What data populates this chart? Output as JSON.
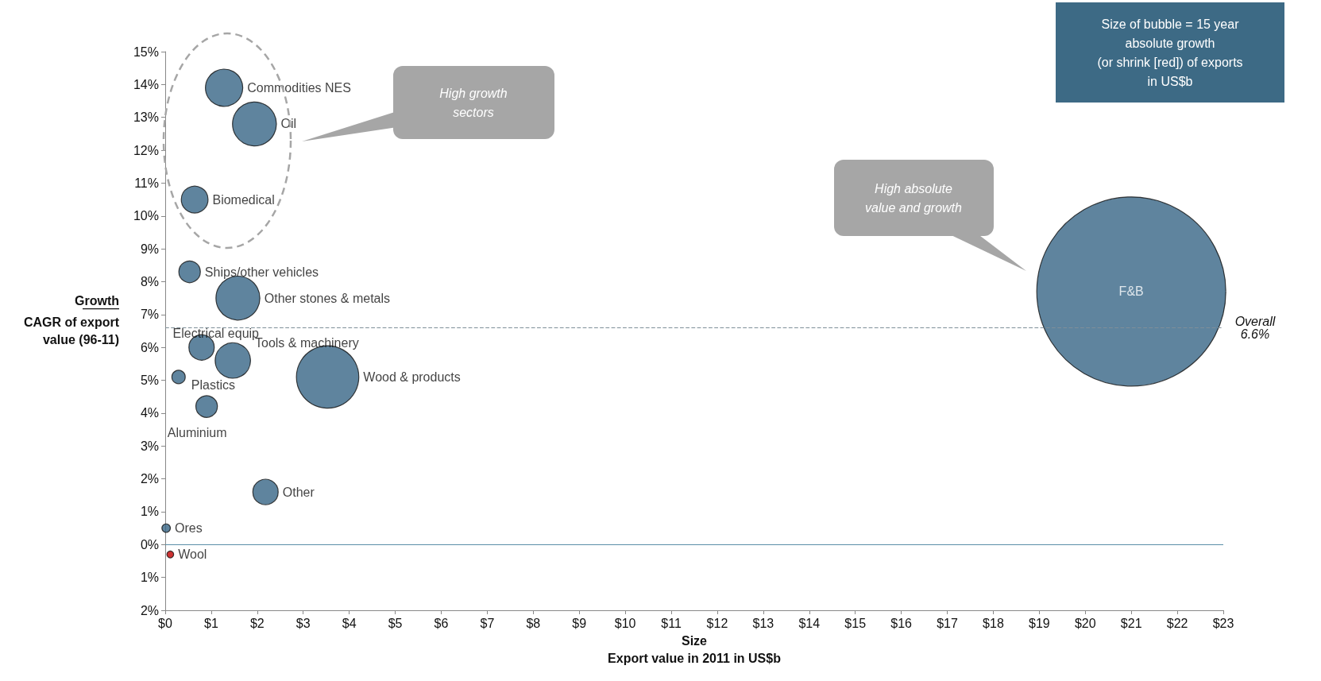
{
  "chart_data": {
    "type": "bubble",
    "xlabel": "Size\nExport value in 2011 in US$b",
    "ylabel": "Growth\nCAGR of export value (96-11)",
    "xlim": [
      0,
      23
    ],
    "ylim": [
      -2,
      15
    ],
    "xticks": [
      {
        "value": 0,
        "label": "$0"
      },
      {
        "value": 1,
        "label": "$1"
      },
      {
        "value": 2,
        "label": "$2"
      },
      {
        "value": 3,
        "label": "$3"
      },
      {
        "value": 4,
        "label": "$4"
      },
      {
        "value": 5,
        "label": "$5"
      },
      {
        "value": 6,
        "label": "$6"
      },
      {
        "value": 7,
        "label": "$7"
      },
      {
        "value": 8,
        "label": "$8"
      },
      {
        "value": 9,
        "label": "$9"
      },
      {
        "value": 10,
        "label": "$10"
      },
      {
        "value": 11,
        "label": "$11"
      },
      {
        "value": 12,
        "label": "$12"
      },
      {
        "value": 13,
        "label": "$13"
      },
      {
        "value": 14,
        "label": "$14"
      },
      {
        "value": 15,
        "label": "$15"
      },
      {
        "value": 16,
        "label": "$16"
      },
      {
        "value": 17,
        "label": "$17"
      },
      {
        "value": 18,
        "label": "$18"
      },
      {
        "value": 19,
        "label": "$19"
      },
      {
        "value": 20,
        "label": "$20"
      },
      {
        "value": 21,
        "label": "$21"
      },
      {
        "value": 22,
        "label": "$22"
      },
      {
        "value": 23,
        "label": "$23"
      }
    ],
    "yticks": [
      {
        "value": -2,
        "label": "2%"
      },
      {
        "value": -1,
        "label": "1%"
      },
      {
        "value": 0,
        "label": "0%"
      },
      {
        "value": 1,
        "label": "1%"
      },
      {
        "value": 2,
        "label": "2%"
      },
      {
        "value": 3,
        "label": "3%"
      },
      {
        "value": 4,
        "label": "4%"
      },
      {
        "value": 5,
        "label": "5%"
      },
      {
        "value": 6,
        "label": "6%"
      },
      {
        "value": 7,
        "label": "7%"
      },
      {
        "value": 8,
        "label": "8%"
      },
      {
        "value": 9,
        "label": "9%"
      },
      {
        "value": 10,
        "label": "10%"
      },
      {
        "value": 11,
        "label": "11%"
      },
      {
        "value": 12,
        "label": "12%"
      },
      {
        "value": 13,
        "label": "13%"
      },
      {
        "value": 14,
        "label": "14%"
      },
      {
        "value": 15,
        "label": "15%"
      }
    ],
    "grid": false,
    "legend": false,
    "series": [
      {
        "name": "Commodities NES",
        "color": "#376586",
        "x": [
          1.28
        ],
        "values": [
          13.9
        ],
        "sizes": [
          0.039
        ]
      },
      {
        "name": "Oil",
        "color": "#376586",
        "x": [
          1.94
        ],
        "values": [
          12.8
        ],
        "sizes": [
          0.054
        ]
      },
      {
        "name": "Biomedical",
        "color": "#376586",
        "x": [
          0.64
        ],
        "values": [
          10.5
        ],
        "sizes": [
          0.02
        ]
      },
      {
        "name": "Ships/other vehicles",
        "color": "#376586",
        "x": [
          0.53
        ],
        "values": [
          8.3
        ],
        "sizes": [
          0.013
        ]
      },
      {
        "name": "Other stones & metals",
        "color": "#376586",
        "x": [
          1.58
        ],
        "values": [
          7.5
        ],
        "sizes": [
          0.054
        ]
      },
      {
        "name": "Electrical equip",
        "color": "#376586",
        "x": [
          0.79
        ],
        "values": [
          6.0
        ],
        "sizes": [
          0.018
        ]
      },
      {
        "name": "Tools & machinery",
        "color": "#376586",
        "x": [
          1.47
        ],
        "values": [
          5.6
        ],
        "sizes": [
          0.035
        ]
      },
      {
        "name": "Plastics",
        "color": "#376586",
        "x": [
          0.29
        ],
        "values": [
          5.1
        ],
        "sizes": [
          0.005
        ]
      },
      {
        "name": "Wood & products",
        "color": "#376586",
        "x": [
          3.53
        ],
        "values": [
          5.1
        ],
        "sizes": [
          0.109
        ]
      },
      {
        "name": "Aluminium",
        "color": "#376586",
        "x": [
          0.9
        ],
        "values": [
          4.2
        ],
        "sizes": [
          0.013
        ]
      },
      {
        "name": "Other",
        "color": "#376586",
        "x": [
          2.18
        ],
        "values": [
          1.6
        ],
        "sizes": [
          0.018
        ]
      },
      {
        "name": "Ores",
        "color": "#376586",
        "x": [
          0.02
        ],
        "values": [
          0.5
        ],
        "sizes": [
          0.002
        ]
      },
      {
        "name": "Wool",
        "color": "#c00000",
        "x": [
          0.11
        ],
        "values": [
          -0.3
        ],
        "sizes": [
          0.0013
        ]
      },
      {
        "name": "F&B",
        "color": "#376586",
        "x": [
          21.0
        ],
        "values": [
          7.7
        ],
        "sizes": [
          1
        ]
      }
    ],
    "ref_lines": [
      {
        "axis": "y",
        "value": 6.6,
        "label": "Overall\n6.6%",
        "color": "#7f8f99",
        "line_style": "dashed"
      },
      {
        "axis": "y",
        "value": 0,
        "color": "#5b8fa8",
        "line_style": "solid"
      }
    ],
    "annotations": [
      "High growth\nsectors",
      "High absolute\nvalue and growth",
      "Size of bubble = 15 year\nabsolute growth\n(or shrink [red]) of exports\nin US$b"
    ]
  }
}
